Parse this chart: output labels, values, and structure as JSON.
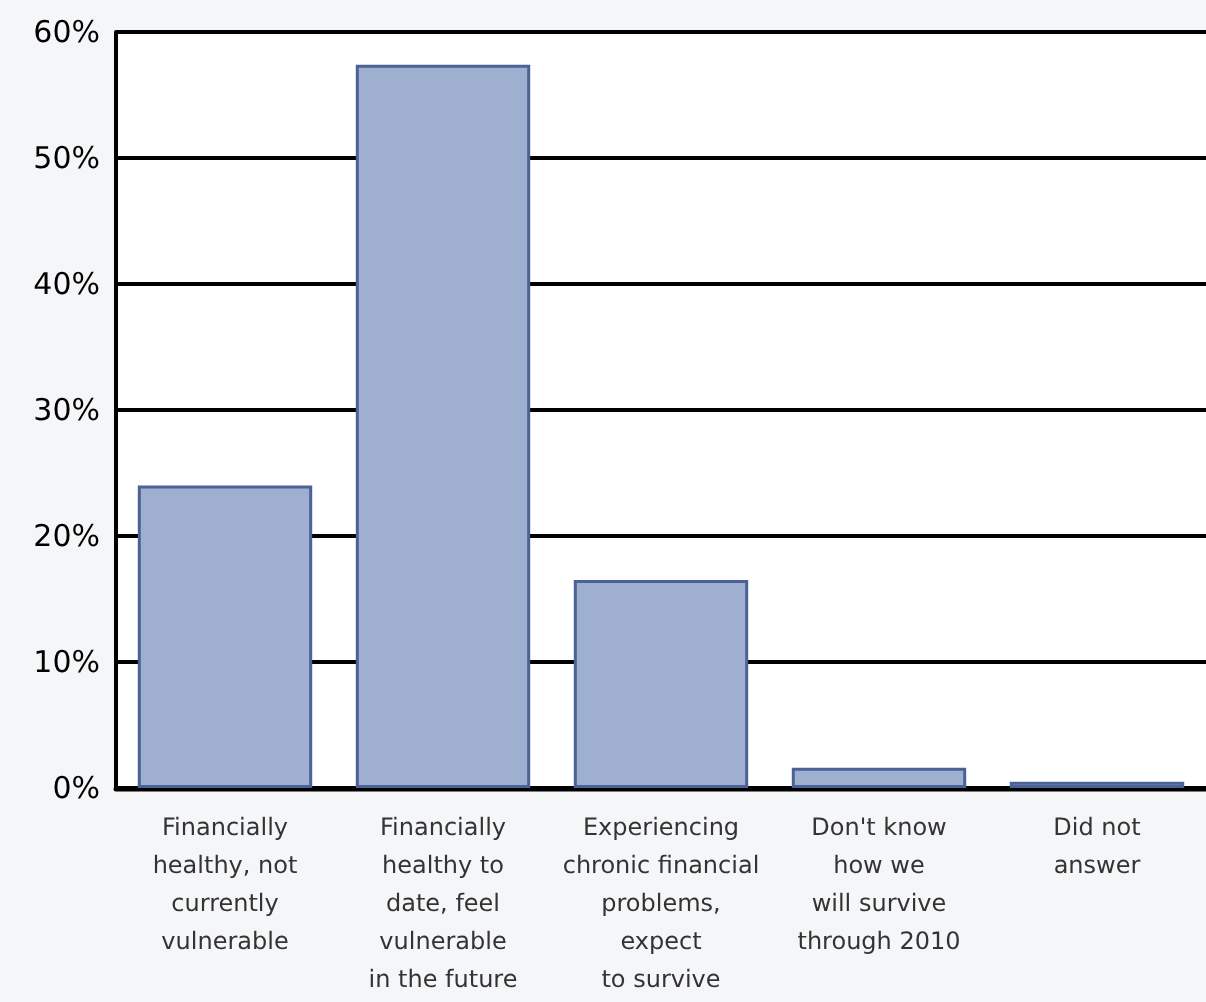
{
  "chart_data": {
    "type": "bar",
    "categories": [
      "Financially\nhealthy, not\ncurrently\nvulnerable",
      "Financially\nhealthy to\ndate, feel\nvulnerable\nin the future",
      "Experiencing\nchronic financial\nproblems,\nexpect\nto survive",
      "Don't know\nhow we\nwill survive\nthrough 2010",
      "Did not\nanswer"
    ],
    "values": [
      24,
      57.4,
      16.5,
      1.6,
      0.5
    ],
    "color": "#9eafd0",
    "ylim": [
      0,
      60
    ],
    "yticks": [
      {
        "value": 0,
        "label": "0%"
      },
      {
        "value": 10,
        "label": "10%"
      },
      {
        "value": 20,
        "label": "20%"
      },
      {
        "value": 30,
        "label": "30%"
      },
      {
        "value": 40,
        "label": "40%"
      },
      {
        "value": 50,
        "label": "50%"
      },
      {
        "value": 60,
        "label": "60%"
      }
    ],
    "grid": "y"
  }
}
